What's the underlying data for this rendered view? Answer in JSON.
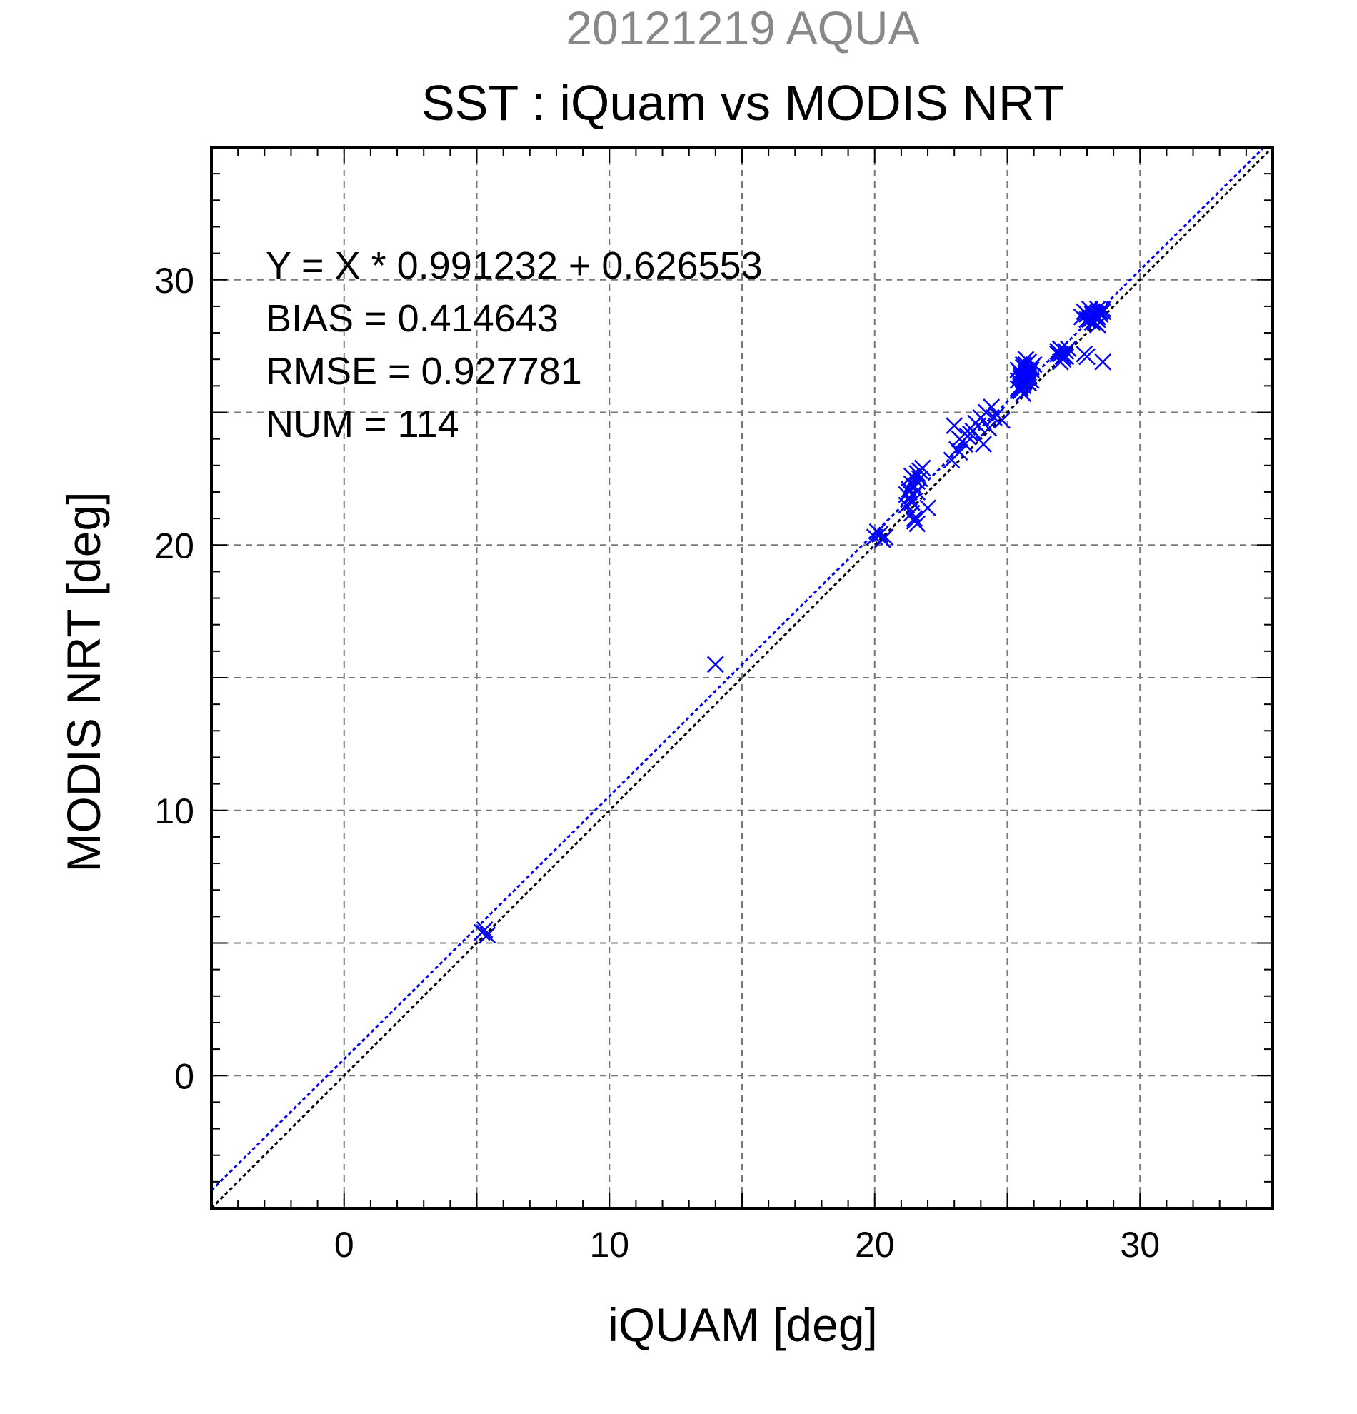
{
  "chart_data": {
    "type": "scatter",
    "subtitle": "20121219 AQUA",
    "title": "SST : iQuam vs MODIS NRT",
    "xlabel": "iQUAM [deg]",
    "ylabel": "MODIS NRT [deg]",
    "xlim": [
      -5,
      35
    ],
    "ylim": [
      -5,
      35
    ],
    "major_ticks": [
      0,
      10,
      20,
      30
    ],
    "grid_ticks": [
      0,
      5,
      10,
      15,
      20,
      25,
      30
    ],
    "minor_tick_step": 1,
    "grid": true,
    "stats": [
      "Y = X * 0.991232 + 0.626553",
      "BIAS = 0.414643",
      "RMSE = 0.927781",
      "NUM = 114"
    ],
    "fit_line": {
      "slope": 0.991232,
      "intercept": 0.626553,
      "color": "#0000ff",
      "style": "dotted"
    },
    "identity_line": {
      "slope": 1,
      "intercept": 0,
      "color": "#000000",
      "style": "dotted"
    },
    "series": [
      {
        "marker": "x",
        "color": "#0000ff",
        "x": [
          5.2,
          5.4,
          5.3,
          14.0,
          20.0,
          20.2,
          20.4,
          20.1,
          20.3,
          21.2,
          21.3,
          21.4,
          21.5,
          21.6,
          21.7,
          21.4,
          21.5,
          21.6,
          21.3,
          21.5,
          21.2,
          21.4,
          21.6,
          21.8,
          22.0,
          21.5,
          21.3,
          21.6,
          21.4,
          21.7,
          23.0,
          23.2,
          23.4,
          23.6,
          23.8,
          24.0,
          24.2,
          24.4,
          24.6,
          24.8,
          23.1,
          23.3,
          23.5,
          23.7,
          23.9,
          24.1,
          24.3,
          23.2,
          24.5,
          22.9,
          25.4,
          25.5,
          25.6,
          25.7,
          25.8,
          25.9,
          26.0,
          25.5,
          25.6,
          25.7,
          25.8,
          25.4,
          25.5,
          25.6,
          25.7,
          25.8,
          25.9,
          25.5,
          25.6,
          25.7,
          25.8,
          25.4,
          25.6,
          25.7,
          25.9,
          25.5,
          25.6,
          25.8,
          25.7,
          25.5,
          26.9,
          27.0,
          27.1,
          27.2,
          27.0,
          27.1,
          26.9,
          27.2,
          27.3,
          27.0,
          27.8,
          27.9,
          28.0,
          28.1,
          28.2,
          28.3,
          28.4,
          28.5,
          28.6,
          28.0,
          28.1,
          28.2,
          28.3,
          28.4,
          28.5,
          28.2,
          28.3,
          28.4,
          28.1,
          28.6,
          27.9,
          28.0,
          28.6,
          28.4
        ],
        "y": [
          5.4,
          5.3,
          5.5,
          15.5,
          20.3,
          20.4,
          20.3,
          20.5,
          20.2,
          21.5,
          22.0,
          22.3,
          22.5,
          22.7,
          22.8,
          21.2,
          20.9,
          20.8,
          21.8,
          22.2,
          21.9,
          22.6,
          22.4,
          22.9,
          21.4,
          21.0,
          22.1,
          22.0,
          21.6,
          22.5,
          24.5,
          24.0,
          23.8,
          24.2,
          24.6,
          24.8,
          25.0,
          25.2,
          24.9,
          24.7,
          23.6,
          23.9,
          24.1,
          24.3,
          24.5,
          23.8,
          24.4,
          23.5,
          24.8,
          23.2,
          26.2,
          26.5,
          26.8,
          27.0,
          26.4,
          26.6,
          26.8,
          25.8,
          26.0,
          26.3,
          26.1,
          25.9,
          26.4,
          26.7,
          26.5,
          26.9,
          26.2,
          26.0,
          25.7,
          26.6,
          26.3,
          26.6,
          26.1,
          26.4,
          26.7,
          25.9,
          26.2,
          26.5,
          26.8,
          26.3,
          27.2,
          27.4,
          27.1,
          27.3,
          26.9,
          27.0,
          27.3,
          27.1,
          27.4,
          27.2,
          28.6,
          28.8,
          28.5,
          28.9,
          28.7,
          28.4,
          28.6,
          28.8,
          28.9,
          28.7,
          28.5,
          28.8,
          28.6,
          28.9,
          28.7,
          28.4,
          28.7,
          28.5,
          28.6,
          28.8,
          27.2,
          27.1,
          26.9,
          28.3
        ]
      }
    ]
  }
}
